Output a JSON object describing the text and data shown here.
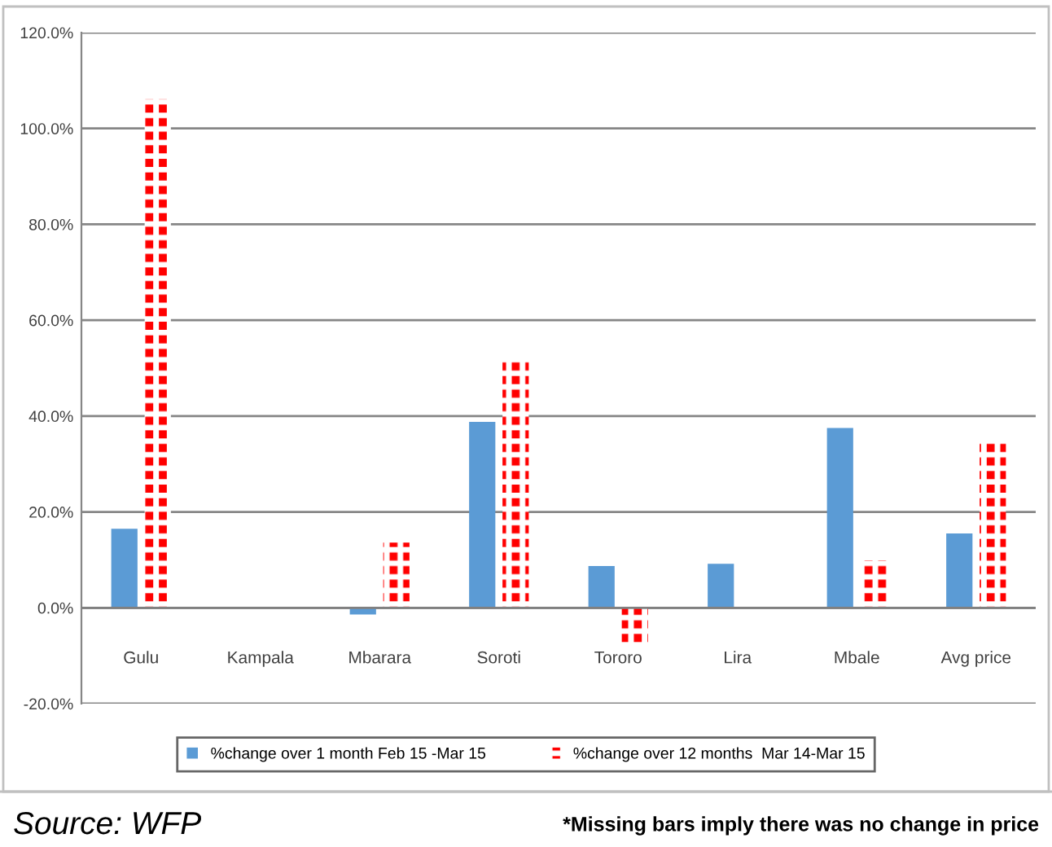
{
  "chart_data": {
    "type": "bar",
    "categories": [
      "Gulu",
      "Kampala",
      "Mbarara",
      "Soroti",
      "Tororo",
      "Lira",
      "Mbale",
      "Avg price"
    ],
    "series": [
      {
        "name": "%change over 1 month Feb 15 -Mar 15",
        "color": "#5b9bd5",
        "values": [
          16.5,
          null,
          -1.4,
          38.8,
          8.7,
          9.2,
          37.5,
          15.5
        ]
      },
      {
        "name": "%change over 12 months  Mar 14-Mar 15",
        "color": "#ff0000",
        "values": [
          106.1,
          null,
          13.6,
          51.5,
          -7.4,
          null,
          9.9,
          34.7
        ]
      }
    ],
    "ylim": [
      -20,
      120
    ],
    "yticks": [
      {
        "value": -20,
        "label": "-20.0%"
      },
      {
        "value": 0,
        "label": "0.0%"
      },
      {
        "value": 20,
        "label": "20.0%"
      },
      {
        "value": 40,
        "label": "40.0%"
      },
      {
        "value": 60,
        "label": "60.0%"
      },
      {
        "value": 80,
        "label": "80.0%"
      },
      {
        "value": 100,
        "label": "100.0%"
      },
      {
        "value": 120,
        "label": "120.0%"
      }
    ],
    "grid": "y",
    "legend": "bottom",
    "annotations": [
      "Source: WFP",
      "*Missing bars imply there was no change in price"
    ]
  }
}
